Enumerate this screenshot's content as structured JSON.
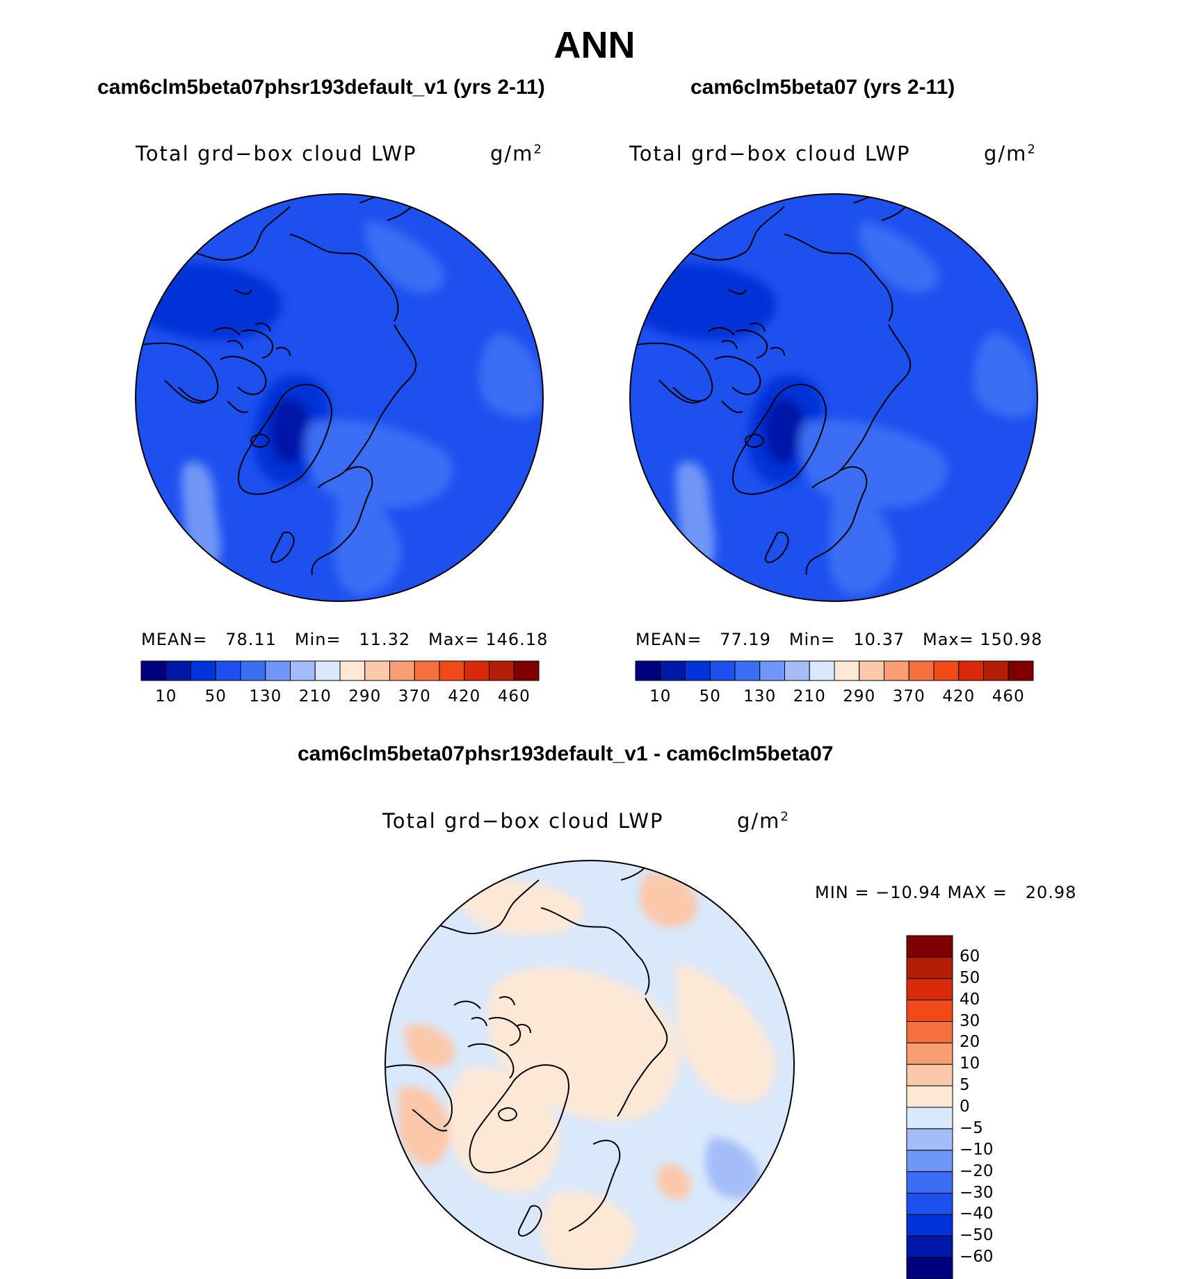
{
  "page": {
    "title": "ANN"
  },
  "panels": [
    {
      "case_title": "cam6clm5beta07phsr193default_v1 (yrs 2-11)",
      "variable_label": "Total grd−box cloud LWP",
      "units_base": "g/m",
      "units_exp": "2",
      "stats": "MEAN=   78.11   Min=   11.32   Max= 146.18"
    },
    {
      "case_title": "cam6clm5beta07 (yrs 2-11)",
      "variable_label": "Total grd−box cloud LWP",
      "units_base": "g/m",
      "units_exp": "2",
      "stats": "MEAN=   77.19   Min=   10.37   Max= 150.98"
    }
  ],
  "diff_panel": {
    "title": "cam6clm5beta07phsr193default_v1 - cam6clm5beta07",
    "variable_label": "Total grd−box cloud LWP",
    "units_base": "g/m",
    "units_exp": "2",
    "stats": "MIN = −10.94 MAX =   20.98"
  },
  "chart_data": [
    {
      "type": "heatmap",
      "projection": "north-polar-stereographic",
      "title": "cam6clm5beta07phsr193default_v1 (yrs 2-11)",
      "variable": "Total grd−box cloud LWP",
      "units": "g/m2",
      "mean": 78.11,
      "min": 11.32,
      "max": 146.18,
      "colorbar_orientation": "horizontal",
      "colorbar_colors": [
        "#00007f",
        "#0018a8",
        "#0033d8",
        "#1e50f0",
        "#3b6ef5",
        "#6f97f7",
        "#a4bdf8",
        "#d9e8fb",
        "#fde8d6",
        "#fbc8aa",
        "#f99d74",
        "#f5703f",
        "#f04a19",
        "#d82a0a",
        "#b41d06",
        "#7e0000"
      ],
      "colorbar_tick_labels": [
        "10",
        "50",
        "130",
        "210",
        "290",
        "370",
        "420",
        "460"
      ]
    },
    {
      "type": "heatmap",
      "projection": "north-polar-stereographic",
      "title": "cam6clm5beta07 (yrs 2-11)",
      "variable": "Total grd−box cloud LWP",
      "units": "g/m2",
      "mean": 77.19,
      "min": 10.37,
      "max": 150.98,
      "colorbar_orientation": "horizontal",
      "colorbar_colors": [
        "#00007f",
        "#0018a8",
        "#0033d8",
        "#1e50f0",
        "#3b6ef5",
        "#6f97f7",
        "#a4bdf8",
        "#d9e8fb",
        "#fde8d6",
        "#fbc8aa",
        "#f99d74",
        "#f5703f",
        "#f04a19",
        "#d82a0a",
        "#b41d06",
        "#7e0000"
      ],
      "colorbar_tick_labels": [
        "10",
        "50",
        "130",
        "210",
        "290",
        "370",
        "420",
        "460"
      ]
    },
    {
      "type": "heatmap",
      "projection": "north-polar-stereographic",
      "title": "cam6clm5beta07phsr193default_v1 - cam6clm5beta07",
      "variable": "Total grd−box cloud LWP",
      "units": "g/m2",
      "min": -10.94,
      "max": 20.98,
      "colorbar_orientation": "vertical",
      "colorbar_colors": [
        "#7e0000",
        "#b41d06",
        "#d82a0a",
        "#f04a19",
        "#f5703f",
        "#f99d74",
        "#fbc8aa",
        "#fde8d6",
        "#d9e8fb",
        "#a4bdf8",
        "#6f97f7",
        "#3b6ef5",
        "#1e50f0",
        "#0033d8",
        "#0018a8",
        "#00007f"
      ],
      "colorbar_tick_labels": [
        "60",
        "50",
        "40",
        "30",
        "20",
        "10",
        "5",
        "0",
        "−5",
        "−10",
        "−20",
        "−30",
        "−40",
        "−50",
        "−60"
      ]
    }
  ]
}
